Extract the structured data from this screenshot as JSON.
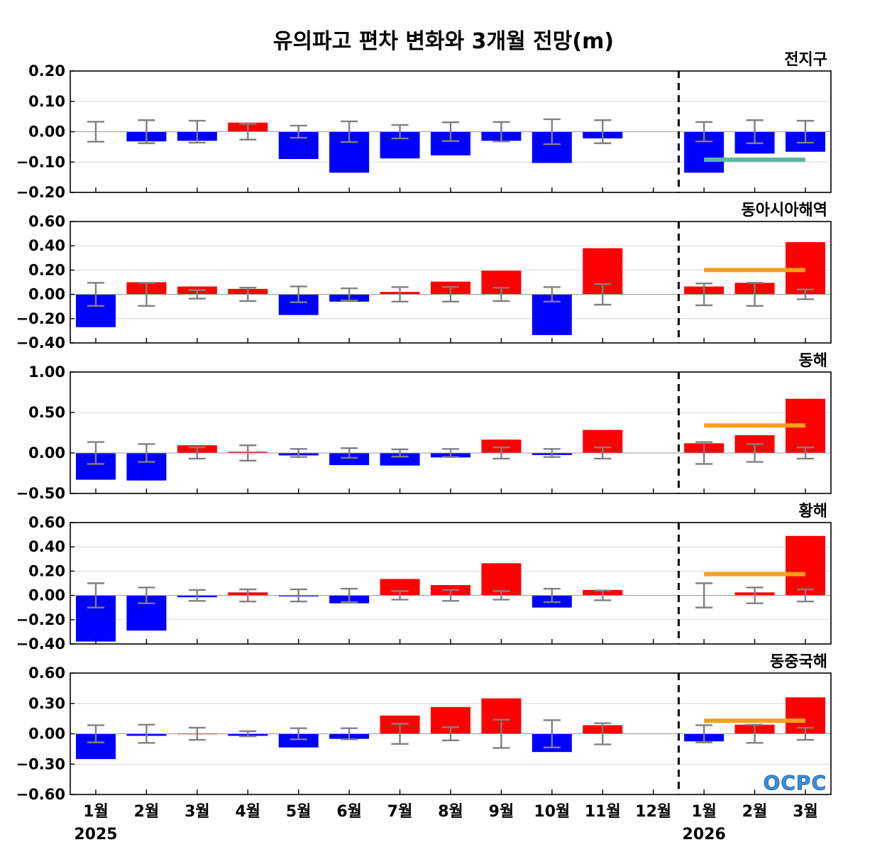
{
  "chart_data": {
    "type": "bar",
    "title": "유의파고 편차 변화와 3개월 전망(m)",
    "categories": [
      "1월",
      "2월",
      "3월",
      "4월",
      "5월",
      "6월",
      "7월",
      "8월",
      "9월",
      "10월",
      "11월",
      "12월",
      "1월",
      "2월",
      "3월"
    ],
    "year_labels": [
      {
        "label": "2025",
        "category_index": 0
      },
      {
        "label": "2026",
        "category_index": 12
      }
    ],
    "divider_after_category": "12월",
    "logo_text": "OCPC",
    "colors": {
      "positive": "#ff0000",
      "negative": "#0000ff",
      "errorbar": "#808080",
      "grid": "#d9d9d9",
      "forecast_global": "#5bb8a0",
      "forecast_regional": "#f5a01a"
    },
    "panels": [
      {
        "region": "전지구",
        "ylim": [
          -0.2,
          0.2
        ],
        "yticks": [
          0.2,
          0.1,
          0.0,
          -0.1,
          -0.2
        ],
        "tick_labels": [
          "0.20",
          "0.10",
          "0.00",
          "−0.10",
          "−0.20"
        ],
        "values": [
          0.0,
          -0.032,
          -0.03,
          0.03,
          -0.09,
          -0.135,
          -0.088,
          -0.078,
          -0.03,
          -0.103,
          -0.022,
          0.0,
          -0.135,
          -0.072,
          -0.066
        ],
        "error": [
          0.033,
          0.038,
          0.036,
          0.026,
          0.02,
          0.034,
          0.022,
          0.031,
          0.032,
          0.041,
          0.038,
          0.0,
          0.032,
          0.038,
          0.036
        ],
        "forecast_value": -0.092
      },
      {
        "region": "동아시아해역",
        "ylim": [
          -0.4,
          0.6
        ],
        "yticks": [
          0.6,
          0.4,
          0.2,
          0.0,
          -0.2,
          -0.4
        ],
        "tick_labels": [
          "0.60",
          "0.40",
          "0.20",
          "0.00",
          "−0.20",
          "−0.40"
        ],
        "values": [
          -0.27,
          0.1,
          0.065,
          0.045,
          -0.17,
          -0.06,
          0.02,
          0.105,
          0.195,
          -0.335,
          0.38,
          0.0,
          0.065,
          0.095,
          0.43
        ],
        "error": [
          0.095,
          0.095,
          0.035,
          0.055,
          0.065,
          0.05,
          0.06,
          0.06,
          0.055,
          0.06,
          0.085,
          0.0,
          0.09,
          0.095,
          0.04
        ],
        "forecast_value": 0.2
      },
      {
        "region": "동해",
        "ylim": [
          -0.5,
          1.0
        ],
        "yticks": [
          1.0,
          0.5,
          0.0,
          -0.5
        ],
        "tick_labels": [
          "1.00",
          "0.50",
          "0.00",
          "−0.50"
        ],
        "values": [
          -0.33,
          -0.34,
          0.095,
          0.015,
          -0.03,
          -0.15,
          -0.155,
          -0.055,
          0.165,
          -0.025,
          0.285,
          0.0,
          0.12,
          0.22,
          0.67
        ],
        "error": [
          0.135,
          0.11,
          0.07,
          0.095,
          0.05,
          0.06,
          0.045,
          0.05,
          0.07,
          0.05,
          0.07,
          0.0,
          0.135,
          0.11,
          0.07
        ],
        "forecast_value": 0.34
      },
      {
        "region": "황해",
        "ylim": [
          -0.4,
          0.6
        ],
        "yticks": [
          0.6,
          0.4,
          0.2,
          0.0,
          -0.2,
          -0.4
        ],
        "tick_labels": [
          "0.60",
          "0.40",
          "0.20",
          "0.00",
          "−0.20",
          "−0.40"
        ],
        "values": [
          -0.38,
          -0.29,
          -0.015,
          0.025,
          -0.005,
          -0.065,
          0.135,
          0.085,
          0.265,
          -0.1,
          0.045,
          0.0,
          0.0,
          0.025,
          0.49
        ],
        "error": [
          0.1,
          0.065,
          0.045,
          0.05,
          0.05,
          0.055,
          0.035,
          0.045,
          0.035,
          0.055,
          0.04,
          0.0,
          0.1,
          0.065,
          0.05
        ],
        "forecast_value": 0.175
      },
      {
        "region": "동중국해",
        "ylim": [
          -0.6,
          0.6
        ],
        "yticks": [
          0.6,
          0.3,
          0.0,
          -0.3,
          -0.6
        ],
        "tick_labels": [
          "0.60",
          "0.30",
          "0.00",
          "−0.30",
          "−0.60"
        ],
        "values": [
          -0.25,
          -0.02,
          0.005,
          -0.02,
          -0.135,
          -0.05,
          0.18,
          0.265,
          0.35,
          -0.18,
          0.085,
          0.0,
          -0.075,
          0.09,
          0.36
        ],
        "error": [
          0.085,
          0.09,
          0.06,
          0.025,
          0.055,
          0.055,
          0.1,
          0.065,
          0.14,
          0.135,
          0.105,
          0.0,
          0.085,
          0.09,
          0.06
        ],
        "forecast_value": 0.13
      }
    ]
  }
}
